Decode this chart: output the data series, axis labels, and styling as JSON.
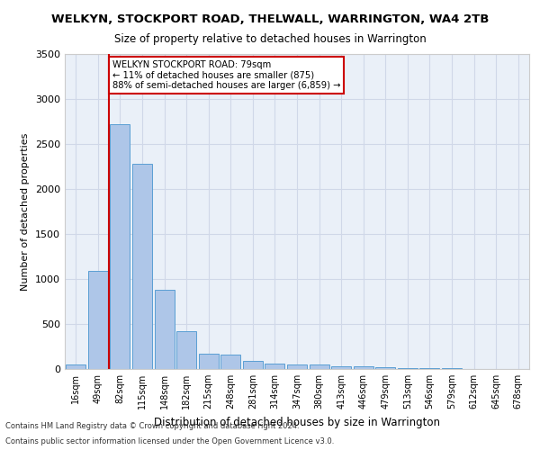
{
  "title": "WELKYN, STOCKPORT ROAD, THELWALL, WARRINGTON, WA4 2TB",
  "subtitle": "Size of property relative to detached houses in Warrington",
  "xlabel": "Distribution of detached houses by size in Warrington",
  "ylabel": "Number of detached properties",
  "categories": [
    "16sqm",
    "49sqm",
    "82sqm",
    "115sqm",
    "148sqm",
    "182sqm",
    "215sqm",
    "248sqm",
    "281sqm",
    "314sqm",
    "347sqm",
    "380sqm",
    "413sqm",
    "446sqm",
    "479sqm",
    "513sqm",
    "546sqm",
    "579sqm",
    "612sqm",
    "645sqm",
    "678sqm"
  ],
  "values": [
    50,
    1090,
    2720,
    2280,
    880,
    420,
    170,
    160,
    95,
    65,
    55,
    50,
    35,
    30,
    20,
    15,
    12,
    8,
    5,
    3,
    2
  ],
  "bar_color": "#aec6e8",
  "bar_edge_color": "#5a9fd4",
  "property_line_x": 1.5,
  "annotation_text_line1": "WELKYN STOCKPORT ROAD: 79sqm",
  "annotation_text_line2": "← 11% of detached houses are smaller (875)",
  "annotation_text_line3": "88% of semi-detached houses are larger (6,859) →",
  "annotation_box_color": "#ffffff",
  "annotation_border_color": "#cc0000",
  "vline_color": "#cc0000",
  "ylim": [
    0,
    3500
  ],
  "yticks": [
    0,
    500,
    1000,
    1500,
    2000,
    2500,
    3000,
    3500
  ],
  "grid_color": "#d0d8e8",
  "background_color": "#eaf0f8",
  "footer_line1": "Contains HM Land Registry data © Crown copyright and database right 2024.",
  "footer_line2": "Contains public sector information licensed under the Open Government Licence v3.0."
}
